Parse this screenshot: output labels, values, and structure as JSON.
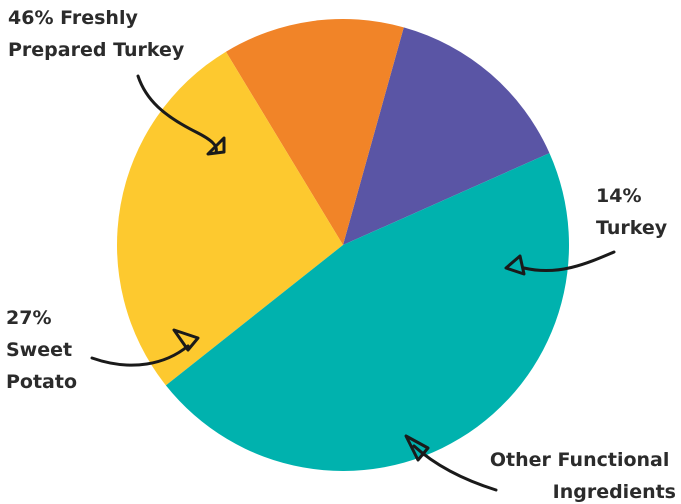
{
  "chart_data": {
    "type": "pie",
    "start_angle_deg": 24,
    "slices": [
      {
        "name": "Turkey",
        "value": 14,
        "label_lines": [
          "14%",
          "Turkey"
        ],
        "color": "#5a55a5",
        "arrow": "arrow-turkey",
        "label": "label-turkey"
      },
      {
        "name": "Other Functional Ingredients",
        "value": 13,
        "label_lines": [
          "Other Functional",
          "Ingredients"
        ],
        "color": "#f18428",
        "arrow": "arrow-other",
        "label": "label-other"
      },
      {
        "name": "Sweet Potato",
        "value": 27,
        "label_lines": [
          "27%",
          "Sweet",
          "Potato"
        ],
        "color": "#fdc92f",
        "arrow": "arrow-sweet-potato",
        "label": "label-sweet-potato"
      },
      {
        "name": "Freshly Prepared Turkey",
        "value": 46,
        "label_lines": [
          "46% Freshly",
          "Prepared Turkey"
        ],
        "color": "#00b2ae",
        "arrow": "arrow-fresh-turkey",
        "label": "label-fresh-turkey"
      }
    ]
  }
}
